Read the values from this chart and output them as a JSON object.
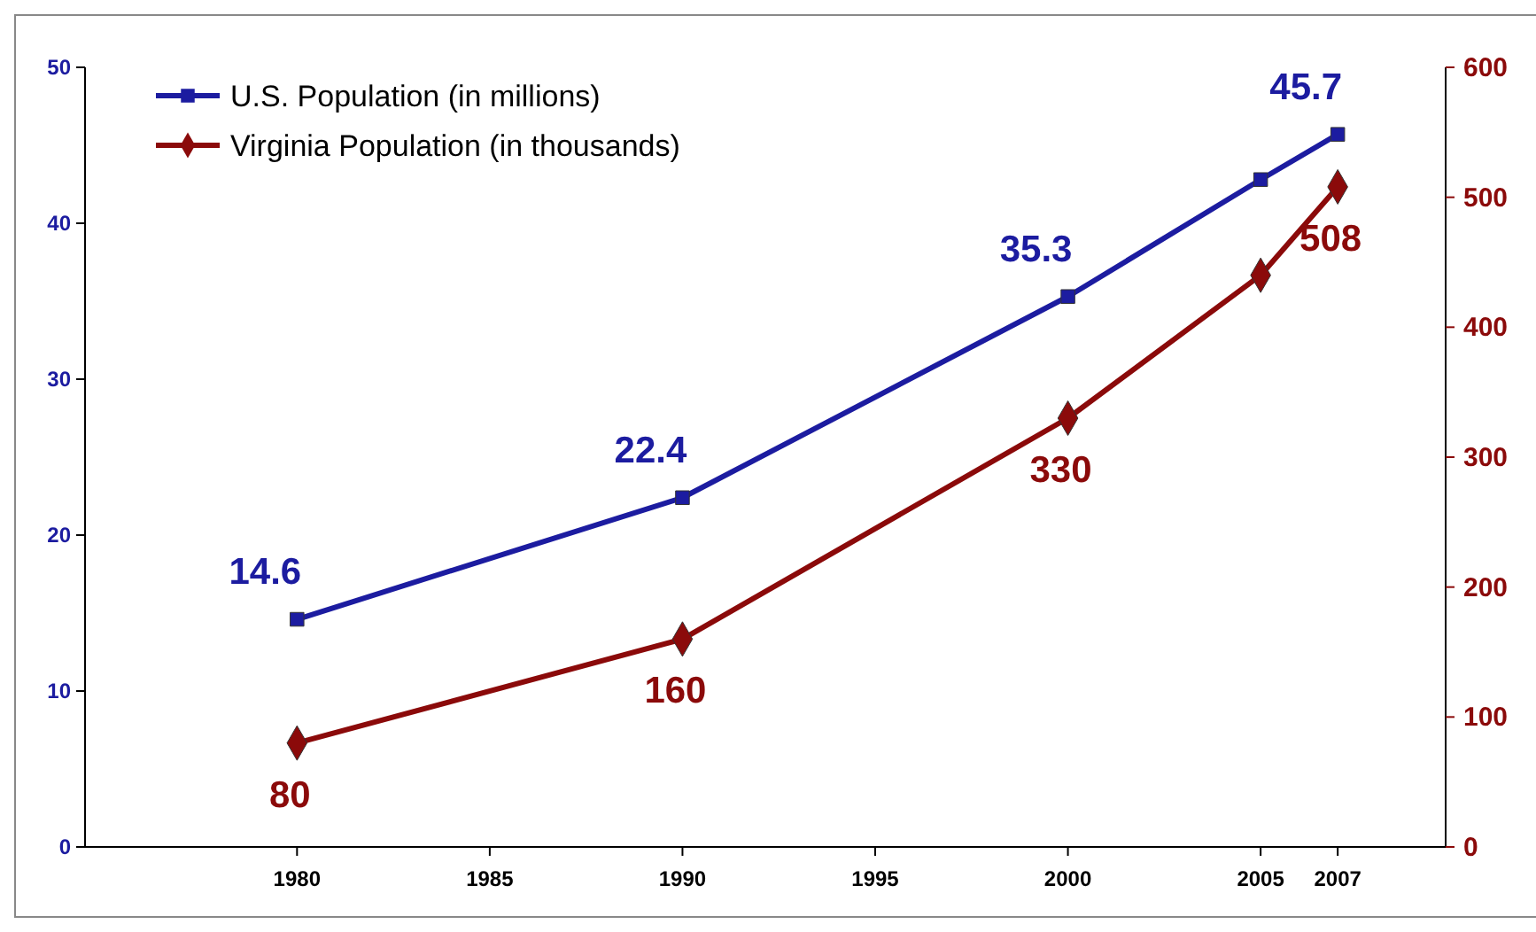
{
  "chart_data": {
    "type": "line",
    "x": [
      1980,
      1990,
      2000,
      2005,
      2007
    ],
    "xlim": [
      1974.5,
      2009.8
    ],
    "xticks": [
      1980,
      1985,
      1990,
      1995,
      2000,
      2005,
      2007
    ],
    "ylim": [
      0,
      50
    ],
    "yticks": [
      0,
      10,
      20,
      30,
      40,
      50
    ],
    "y2lim": [
      0,
      600
    ],
    "y2ticks": [
      0,
      100,
      200,
      300,
      400,
      500,
      600
    ],
    "legend": "top left",
    "grid": false,
    "series": [
      {
        "name": "U.S. Population (in millions)",
        "color": "#1c1ca0",
        "marker": "square",
        "values": [
          14.6,
          22.4,
          35.3,
          42.8,
          45.7
        ],
        "value_labels": [
          "14.6",
          "22.4",
          "35.3",
          null,
          "45.7"
        ]
      },
      {
        "name": "Virginia Population (in thousands)",
        "color": "#8b0a0a",
        "marker": "diamond",
        "axis": "y2",
        "values": [
          80,
          160,
          330,
          440,
          508
        ],
        "value_labels": [
          "80",
          "160",
          "330",
          null,
          "508"
        ]
      }
    ]
  }
}
